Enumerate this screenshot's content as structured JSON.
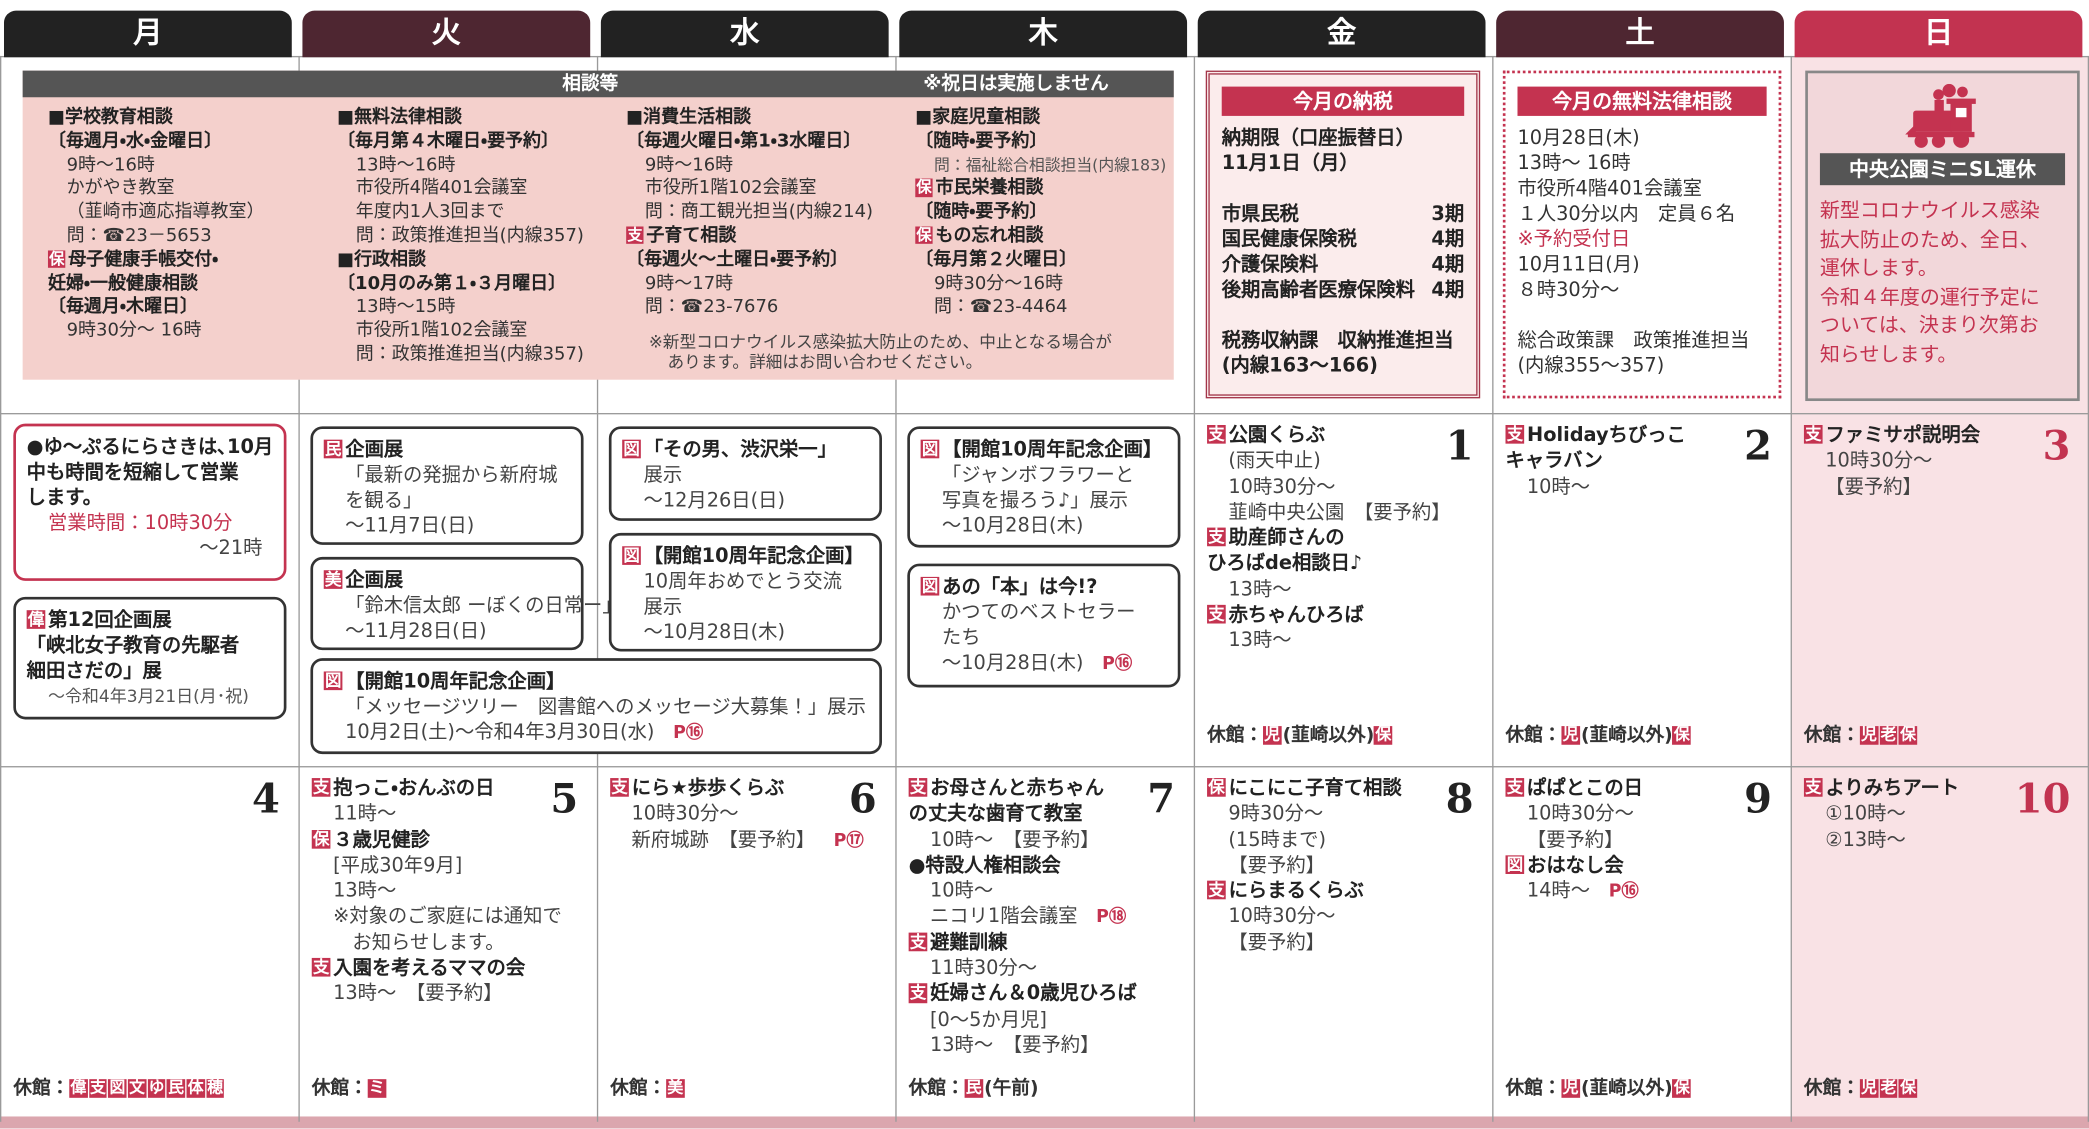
{
  "header": {
    "days": [
      "月",
      "火",
      "水",
      "木",
      "金",
      "土",
      "日"
    ]
  },
  "consultation": {
    "title": "相談等",
    "note": "※祝日は実施しません",
    "columns": [
      [
        {
          "heading": "■学校教育相談"
        },
        {
          "heading": "〔毎週月・水・金曜日〕"
        },
        "9時〜16時",
        "かがやき教室",
        "（韮崎市適応指導教室）",
        "問：☎23－5653",
        {
          "tag": "保",
          "heading": "母子健康手帳交付・"
        },
        {
          "heading": "妊婦・一般健康相談"
        },
        {
          "heading": "〔毎週月・木曜日〕"
        },
        "9時30分〜 16時"
      ],
      [
        {
          "heading": "■無料法律相談"
        },
        {
          "heading": "〔毎月第４木曜日・要予約〕"
        },
        "13時〜16時",
        "市役所4階401会議室",
        "年度内1人3回まで",
        "問：政策推進担当(内線357)",
        {
          "heading": "■行政相談"
        },
        {
          "heading": "〔10月のみ第１・３月曜日〕"
        },
        "13時〜15時",
        "市役所1階102会議室",
        "問：政策推進担当(内線357)"
      ],
      [
        {
          "heading": "■消費生活相談"
        },
        {
          "heading": "〔毎週火曜日・第1・3水曜日〕"
        },
        "9時〜16時",
        "市役所1階102会議室",
        "問：商工観光担当(内線214)",
        {
          "tag": "支",
          "heading": "子育て相談"
        },
        {
          "heading": "〔毎週火〜土曜日・要予約〕"
        },
        "9時〜17時",
        "問：☎23-7676"
      ],
      [
        {
          "heading": "■家庭児童相談"
        },
        {
          "heading": "〔随時・要予約〕"
        },
        {
          "note": "問：福祉総合相談担当(内線183)"
        },
        {
          "tag": "保",
          "heading": "市民栄養相談"
        },
        {
          "heading": "〔随時・要予約〕"
        },
        {
          "tag": "保",
          "heading": "もの忘れ相談"
        },
        {
          "heading": "〔毎月第２火曜日〕"
        },
        "9時30分〜16時",
        "問：☎23-4464"
      ]
    ],
    "footnote": [
      "※新型コロナウイルス感染拡大防止のため、中止となる場合が",
      "あります。詳細はお問い合わせください。"
    ]
  },
  "tax": {
    "title": "今月の納税",
    "due": [
      "納期限（口座振替日）",
      "11月1日（月）"
    ],
    "items": [
      {
        "label": "市県民税",
        "value": "3期"
      },
      {
        "label": "国民健康保険税",
        "value": "4期"
      },
      {
        "label": "介護保険料",
        "value": "4期"
      },
      {
        "label": "後期高齢者医療保険料",
        "value": "4期"
      }
    ],
    "contact": [
      "税務収納課　収納推進担当",
      "(内線163〜166)"
    ]
  },
  "legal": {
    "title": "今月の無料法律相談",
    "lines": [
      "10月28日(木)",
      "13時〜 16時",
      "市役所4階401会議室",
      "１人30分以内　定員６名",
      {
        "red": "※予約受付日"
      },
      "10月11日(月)",
      "８時30分〜"
    ],
    "contact": [
      "総合政策課　政策推進担当",
      "(内線355〜357)"
    ]
  },
  "sunday_notice": {
    "title": "中央公園ミニSL運休",
    "lines": [
      "新型コロナウイルス感染",
      "拡大防止のため、全日、",
      "運休します。",
      "令和４年度の運行予定に",
      "ついては、決まり次第お",
      "知らせします。"
    ]
  },
  "weeks": [
    {
      "days": [
        {
          "boxes": [
            [
              {
                "heading": "●ゆ〜ぷるにらさきは､10月"
              },
              {
                "heading": "中も時間を短縮して営業"
              },
              {
                "heading": "します。"
              },
              {
                "red": "営業時間：10時30分"
              },
              {
                "right": "〜21時"
              }
            ],
            [
              {
                "tag": "偉",
                "heading": "第12回企画展"
              },
              {
                "heading": "「峡北女子教育の先駆者"
              },
              {
                "heading": "細田さだの」展"
              },
              {
                "note": "〜令和4年3月21日(月･祝)"
              }
            ]
          ]
        },
        {
          "boxes": [
            [
              {
                "tag": "民",
                "heading": "企画展"
              },
              "「最新の発掘から新府城",
              "を観る」",
              "〜11月7日(日)"
            ],
            [
              {
                "tag": "美",
                "heading": "企画展"
              },
              "「鈴木信太郎 ーぼくの日常ー」",
              "〜11月28日(日)"
            ],
            [
              {
                "tag": "図",
                "heading": "【開館10周年記念企画】"
              },
              "「メッセージツリー　図書館へのメッセージ大募集！」展示",
              {
                "text": "10月2日(土)〜令和4年3月30日(水)",
                "page": "P⑯"
              }
            ]
          ]
        },
        {
          "boxes": [
            [
              {
                "tag": "図",
                "heading": "「その男、渋沢栄一」"
              },
              "展示",
              "〜12月26日(日)"
            ],
            [
              {
                "tag": "図",
                "heading": "【開館10周年記念企画】"
              },
              "10周年おめでとう交流",
              "展示",
              "〜10月28日(木)"
            ]
          ]
        },
        {
          "boxes": [
            [
              {
                "tag": "図",
                "heading": "【開館10周年記念企画】"
              },
              "「ジャンボフラワーと",
              "写真を撮ろう♪」展示",
              "〜10月28日(木)"
            ],
            [
              {
                "tag": "図",
                "heading": "あの「本」は今!?"
              },
              "かつてのベストセラー",
              "たち",
              {
                "text": "〜10月28日(木)",
                "page": "P⑯"
              }
            ]
          ]
        },
        {
          "date": 1,
          "lines": [
            {
              "tag": "支",
              "heading": "公園くらぶ"
            },
            "(雨天中止)",
            "10時30分〜",
            "韮崎中央公園　【要予約】",
            {
              "tag": "支",
              "heading": "助産師さんの"
            },
            {
              "heading": "ひろばde相談日♪"
            },
            "13時〜",
            {
              "tag": "支",
              "heading": "赤ちゃんひろば"
            },
            "13時〜"
          ],
          "closed": [
            {
              "text": "休館："
            },
            {
              "tag": "児"
            },
            {
              "text": "(韮崎以外)"
            },
            {
              "tag": "保"
            }
          ]
        },
        {
          "date": 2,
          "lines": [
            {
              "tag": "支",
              "heading": "Holidayちびっこ"
            },
            {
              "heading": "キャラバン"
            },
            "10時〜"
          ],
          "closed": [
            {
              "text": "休館："
            },
            {
              "tag": "児"
            },
            {
              "text": "(韮崎以外)"
            },
            {
              "tag": "保"
            }
          ]
        },
        {
          "date": 3,
          "lines": [
            {
              "tag": "支",
              "heading": "ファミサポ説明会"
            },
            "10時30分〜",
            "【要予約】"
          ],
          "closed": [
            {
              "text": "休館："
            },
            {
              "tag": "児"
            },
            {
              "tag": "老"
            },
            {
              "tag": "保"
            }
          ]
        }
      ]
    },
    {
      "days": [
        {
          "date": 4,
          "closed": [
            {
              "text": "休館："
            },
            {
              "tag": "偉"
            },
            {
              "tag": "支"
            },
            {
              "tag": "図"
            },
            {
              "tag": "文"
            },
            {
              "tag": "ゆ"
            },
            {
              "tag": "民"
            },
            {
              "tag": "体"
            },
            {
              "tag": "穂"
            }
          ]
        },
        {
          "date": 5,
          "lines": [
            {
              "tag": "支",
              "heading": "抱っこ・おんぶの日"
            },
            "11時〜",
            {
              "tag": "保",
              "heading": "３歳児健診"
            },
            "[平成30年9月]",
            "13時〜",
            "※対象のご家庭には通知で",
            "　お知らせします。",
            {
              "tag": "支",
              "heading": "入園を考えるママの会"
            },
            "13時〜　【要予約】"
          ],
          "closed": [
            {
              "text": "休館："
            },
            {
              "tag": "ミ"
            }
          ]
        },
        {
          "date": 6,
          "lines": [
            {
              "tag": "支",
              "heading": "にら★歩歩くらぶ"
            },
            "10時30分〜",
            {
              "text": "新府城跡　【要予約】",
              "page": "P⑰"
            }
          ],
          "closed": [
            {
              "text": "休館："
            },
            {
              "tag": "美"
            }
          ]
        },
        {
          "date": 7,
          "lines": [
            {
              "tag": "支",
              "heading": "お母さんと赤ちゃん"
            },
            {
              "heading": "の丈夫な歯育て教室"
            },
            "10時〜　【要予約】",
            {
              "heading": "●特設人権相談会"
            },
            "10時〜",
            {
              "text": "ニコリ1階会議室",
              "page": "P⑱"
            },
            {
              "tag": "支",
              "heading": "避難訓練"
            },
            "11時30分〜",
            {
              "tag": "支",
              "heading": "妊婦さん＆0歳児ひろば"
            },
            "[0〜5か月児]",
            "13時〜　【要予約】"
          ],
          "closed": [
            {
              "text": "休館："
            },
            {
              "tag": "民"
            },
            {
              "text": "(午前)"
            }
          ]
        },
        {
          "date": 8,
          "lines": [
            {
              "tag": "保",
              "heading": "にこにこ子育て相談"
            },
            "9時30分〜",
            "(15時まで)",
            "【要予約】",
            {
              "tag": "支",
              "heading": "にらまるくらぶ"
            },
            "10時30分〜",
            "【要予約】"
          ]
        },
        {
          "date": 9,
          "lines": [
            {
              "tag": "支",
              "heading": "ぱぱとこの日"
            },
            "10時30分〜",
            "【要予約】",
            {
              "tag": "図",
              "heading": "おはなし会"
            },
            {
              "text": "14時〜",
              "page": "P⑯"
            }
          ],
          "closed": [
            {
              "text": "休館："
            },
            {
              "tag": "児"
            },
            {
              "text": "(韮崎以外)"
            },
            {
              "tag": "保"
            }
          ]
        },
        {
          "date": 10,
          "lines": [
            {
              "tag": "支",
              "heading": "よりみちアート"
            },
            "①10時〜",
            "②13時〜"
          ],
          "closed": [
            {
              "text": "休館："
            },
            {
              "tag": "児"
            },
            {
              "tag": "老"
            },
            {
              "tag": "保"
            }
          ]
        }
      ]
    }
  ]
}
